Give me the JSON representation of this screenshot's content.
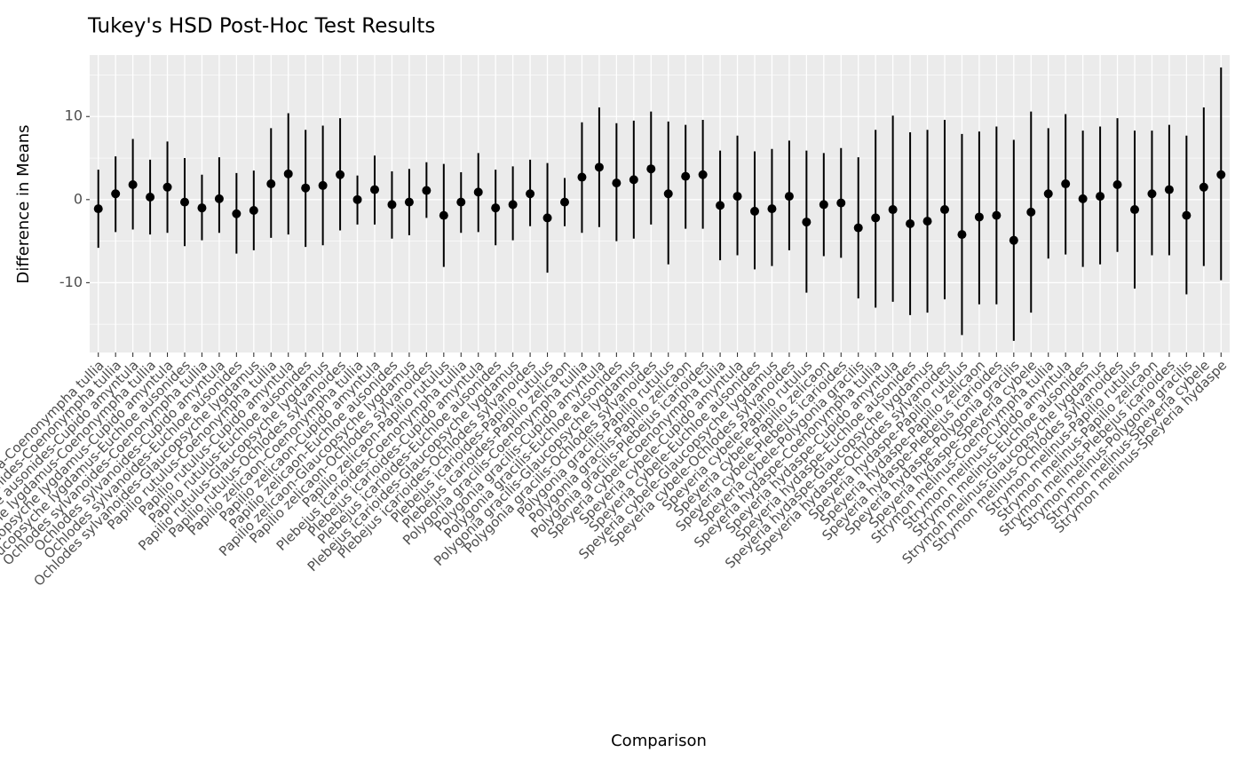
{
  "chart_data": {
    "type": "errorbar",
    "title": "Tukey's HSD Post-Hoc Test Results",
    "x_label": "Comparison",
    "y_label": "Difference in Means",
    "categories": [
      "Cupido amyntula-Coenonympha tullia",
      "Euchloe ausonides-Coenonympha tullia",
      "Euchloe ausonides-Cupido amyntula",
      "Glaucopsyche lygdamus-Coenonympha tullia",
      "Glaucopsyche lygdamus-Cupido amyntula",
      "Glaucopsyche lygdamus-Euchloe ausonides",
      "Ochlodes sylvanoides-Coenonympha tullia",
      "Ochlodes sylvanoides-Cupido amyntula",
      "Ochlodes sylvanoides-Euchloe ausonides",
      "Ochlodes sylvanoides-Glaucopsyche lygdamus",
      "Papilio rutulus-Coenonympha tullia",
      "Papilio rutulus-Cupido amyntula",
      "Papilio rutulus-Euchloe ausonides",
      "Papilio rutulus-Glaucopsyche lygdamus",
      "Papilio rutulus-Ochlodes sylvanoides",
      "Papilio zelicaon-Coenonympha tullia",
      "Papilio zelicaon-Cupido amyntula",
      "Papilio zelicaon-Euchloe ausonides",
      "Papilio zelicaon-Glaucopsyche lygdamus",
      "Papilio zelicaon-Ochlodes sylvanoides",
      "Papilio zelicaon-Papilio rutulus",
      "Plebejus icarioides-Coenonympha tullia",
      "Plebejus icarioides-Cupido amyntula",
      "Plebejus icarioides-Euchloe ausonides",
      "Plebejus icarioides-Glaucopsyche lygdamus",
      "Plebejus icarioides-Ochlodes sylvanoides",
      "Plebejus icarioides-Papilio rutulus",
      "Plebejus icarioides-Papilio zelicaon",
      "Polygonia gracilis-Coenonympha tullia",
      "Polygonia gracilis-Cupido amyntula",
      "Polygonia gracilis-Euchloe ausonides",
      "Polygonia gracilis-Glaucopsyche lygdamus",
      "Polygonia gracilis-Ochlodes sylvanoides",
      "Polygonia gracilis-Papilio rutulus",
      "Polygonia gracilis-Papilio zelicaon",
      "Polygonia gracilis-Plebejus icarioides",
      "Speyeria cybele-Coenonympha tullia",
      "Speyeria cybele-Cupido amyntula",
      "Speyeria cybele-Euchloe ausonides",
      "Speyeria cybele-Glaucopsyche lygdamus",
      "Speyeria cybele-Ochlodes sylvanoides",
      "Speyeria cybele-Papilio rutulus",
      "Speyeria cybele-Papilio zelicaon",
      "Speyeria cybele-Plebejus icarioides",
      "Speyeria cybele-Polygonia gracilis",
      "Speyeria hydaspe-Coenonympha tullia",
      "Speyeria hydaspe-Cupido amyntula",
      "Speyeria hydaspe-Euchloe ausonides",
      "Speyeria hydaspe-Glaucopsyche lygdamus",
      "Speyeria hydaspe-Ochlodes sylvanoides",
      "Speyeria hydaspe-Papilio rutulus",
      "Speyeria hydaspe-Papilio zelicaon",
      "Speyeria hydaspe-Plebejus icarioides",
      "Speyeria hydaspe-Polygonia gracilis",
      "Speyeria hydaspe-Speyeria cybele",
      "Strymon melinus-Coenonympha tullia",
      "Strymon melinus-Cupido amyntula",
      "Strymon melinus-Euchloe ausonides",
      "Strymon melinus-Glaucopsyche lygdamus",
      "Strymon melinus-Ochlodes sylvanoides",
      "Strymon melinus-Papilio rutulus",
      "Strymon melinus-Papilio zelicaon",
      "Strymon melinus-Plebejus icarioides",
      "Strymon melinus-Polygonia gracilis",
      "Strymon melinus-Speyeria cybele",
      "Strymon melinus-Speyeria hydaspe"
    ],
    "values": [
      -1.1,
      0.7,
      1.8,
      0.3,
      1.5,
      -0.3,
      -1.0,
      0.1,
      -1.7,
      -1.3,
      1.9,
      3.1,
      1.4,
      1.7,
      3.0,
      0.0,
      1.2,
      -0.6,
      -0.3,
      1.1,
      -1.9,
      -0.3,
      0.9,
      -1.0,
      -0.6,
      0.7,
      -2.2,
      -0.3,
      2.7,
      3.9,
      2.0,
      2.4,
      3.7,
      0.7,
      2.8,
      3.0,
      -0.7,
      0.4,
      -1.4,
      -1.1,
      0.4,
      -2.7,
      -0.6,
      -0.4,
      -3.4,
      -2.2,
      -1.2,
      -2.9,
      -2.6,
      -1.2,
      -4.2,
      -2.1,
      -1.9,
      -4.9,
      -1.5,
      0.7,
      1.9,
      0.1,
      0.4,
      1.8,
      -1.2,
      0.7,
      1.2,
      -1.9,
      1.5,
      3.0
    ],
    "lower": [
      -5.8,
      -3.9,
      -3.6,
      -4.2,
      -4.0,
      -5.6,
      -4.9,
      -4.0,
      -6.5,
      -6.1,
      -4.6,
      -4.2,
      -5.7,
      -5.5,
      -3.7,
      -3.0,
      -3.0,
      -4.7,
      -4.3,
      -2.2,
      -8.1,
      -4.0,
      -3.9,
      -5.5,
      -4.9,
      -3.2,
      -8.8,
      -3.2,
      -4.0,
      -3.3,
      -5.0,
      -4.7,
      -3.0,
      -7.8,
      -3.5,
      -3.5,
      -7.3,
      -6.7,
      -8.4,
      -8.0,
      -6.1,
      -11.2,
      -6.8,
      -7.0,
      -11.9,
      -13.0,
      -12.3,
      -13.9,
      -13.6,
      -12.0,
      -16.3,
      -12.6,
      -12.6,
      -17.0,
      -13.6,
      -7.1,
      -6.6,
      -8.1,
      -7.8,
      -6.3,
      -10.7,
      -6.7,
      -6.7,
      -11.4,
      -8.0,
      -9.7
    ],
    "upper": [
      3.6,
      5.2,
      7.3,
      4.8,
      7.0,
      5.0,
      3.0,
      5.1,
      3.2,
      3.5,
      8.6,
      10.4,
      8.4,
      8.9,
      9.8,
      2.9,
      5.3,
      3.4,
      3.7,
      4.5,
      4.3,
      3.3,
      5.6,
      3.6,
      4.0,
      4.8,
      4.4,
      2.6,
      9.3,
      11.1,
      9.2,
      9.5,
      10.6,
      9.4,
      9.0,
      9.6,
      5.9,
      7.7,
      5.8,
      6.1,
      7.1,
      5.9,
      5.6,
      6.2,
      5.1,
      8.4,
      10.1,
      8.1,
      8.4,
      9.6,
      7.9,
      8.2,
      8.8,
      7.2,
      10.6,
      8.6,
      10.3,
      8.3,
      8.8,
      9.8,
      8.3,
      8.3,
      9.0,
      7.7,
      11.1,
      15.9
    ],
    "color": "#000000",
    "ylim": [
      -18.4,
      17.4
    ],
    "yticks": [
      -10,
      0,
      10
    ],
    "grid": true
  }
}
